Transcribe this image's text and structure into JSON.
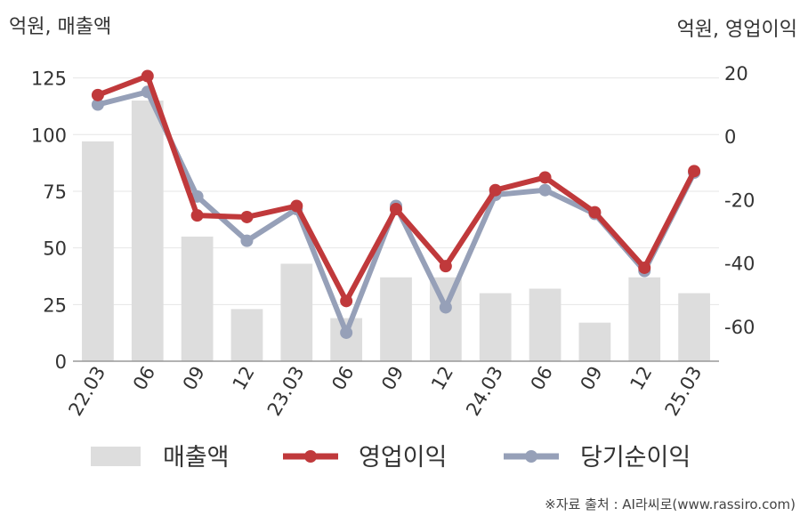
{
  "chart_data": {
    "type": "bar+line",
    "categories": [
      "22.03",
      "06",
      "09",
      "12",
      "23.03",
      "06",
      "09",
      "12",
      "24.03",
      "06",
      "09",
      "12",
      "25.03"
    ],
    "left_axis": {
      "label": "억원, 매출액",
      "range": [
        0,
        137
      ],
      "ticks": [
        0,
        25,
        50,
        75,
        100,
        125
      ]
    },
    "right_axis": {
      "label": "억원, 영업이익",
      "range": [
        -71,
        27
      ],
      "ticks": [
        -60,
        -40,
        -20,
        0,
        20
      ]
    },
    "series": [
      {
        "name": "매출액",
        "kind": "bar",
        "axis": "left",
        "color": "#dddddd",
        "values": [
          97,
          115,
          55,
          23,
          43,
          19,
          37,
          37,
          30,
          32,
          17,
          37,
          30
        ]
      },
      {
        "name": "영업이익",
        "kind": "line",
        "axis": "right",
        "color": "#c0393b",
        "values": [
          13,
          19,
          -25,
          -25.5,
          -22,
          -52,
          -23,
          -41,
          -17,
          -13,
          -24,
          -41.5,
          -11
        ]
      },
      {
        "name": "당기순이익",
        "kind": "line",
        "axis": "right",
        "color": "#96a0b8",
        "values": [
          10,
          14,
          -19,
          -33,
          -23,
          -62,
          -22,
          -54,
          -18.5,
          -17,
          -24.5,
          -42.5,
          -11.5
        ]
      }
    ],
    "grid": true,
    "legend": "bottom"
  },
  "source": "※자료 출처 : AI라씨로(www.rassiro.com)"
}
